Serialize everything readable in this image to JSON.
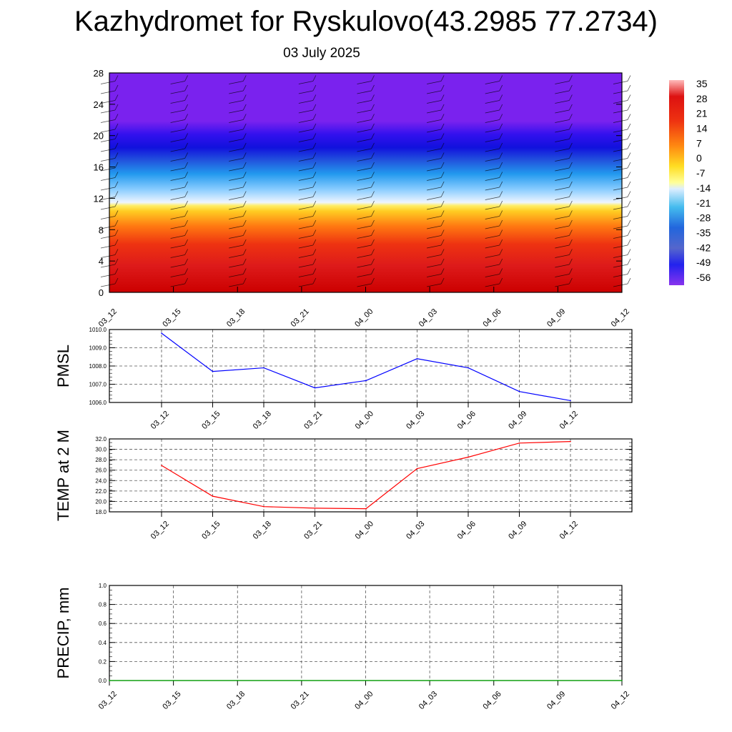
{
  "title": "Kazhydromet for Ryskulovo(43.2985 77.2734)",
  "subtitle": "03 July 2025",
  "chart_data": [
    {
      "type": "heatmap",
      "name": "vertical-temperature-cross-section",
      "x_tick_labels": [
        "03_12",
        "03_15",
        "03_18",
        "03_21",
        "04_00",
        "04_03",
        "04_06",
        "04_09",
        "04_12"
      ],
      "y_ticks": [
        0,
        4,
        8,
        12,
        16,
        20,
        24,
        28
      ],
      "ylim": [
        0,
        28
      ],
      "colorbar_labels": [
        "35",
        "28",
        "21",
        "14",
        "7",
        "0",
        "-7",
        "-14",
        "-21",
        "-28",
        "-35",
        "-42",
        "-49",
        "-56"
      ],
      "colors": {
        "warm": "#cc0000",
        "cold": "#7a22ee"
      }
    },
    {
      "type": "line",
      "ylabel": "PMSL",
      "categories": [
        "03_12",
        "03_15",
        "03_18",
        "03_21",
        "04_00",
        "04_03",
        "04_06",
        "04_09",
        "04_12"
      ],
      "values": [
        1009.8,
        1007.7,
        1007.9,
        1006.8,
        1007.2,
        1008.4,
        1007.9,
        1006.6,
        1006.1
      ],
      "ylim": [
        1006.0,
        1010.0
      ],
      "y_tick_labels": [
        "1010.0",
        "1009.0",
        "1008.0",
        "1007.0",
        "1006.0"
      ],
      "y_tick_values": [
        1010,
        1009,
        1008,
        1007,
        1006
      ],
      "color": "#0000ff"
    },
    {
      "type": "line",
      "ylabel": "TEMP at 2 M",
      "categories": [
        "03_12",
        "03_15",
        "03_18",
        "03_21",
        "04_00",
        "04_03",
        "04_06",
        "04_09",
        "04_12"
      ],
      "values": [
        26.9,
        21.0,
        19.0,
        18.7,
        18.6,
        26.3,
        28.5,
        31.2,
        31.5
      ],
      "ylim": [
        18.0,
        32.0
      ],
      "y_tick_labels": [
        "32.0",
        "30.0",
        "28.0",
        "26.0",
        "24.0",
        "22.0",
        "20.0",
        "18.0"
      ],
      "y_tick_values": [
        32,
        30,
        28,
        26,
        24,
        22,
        20,
        18
      ],
      "color": "#ff0000"
    },
    {
      "type": "line",
      "ylabel": "PRECIP, mm",
      "categories": [
        "03_12",
        "03_15",
        "03_18",
        "03_21",
        "04_00",
        "04_03",
        "04_06",
        "04_09",
        "04_12"
      ],
      "values": [
        0,
        0,
        0,
        0,
        0,
        0,
        0,
        0,
        0
      ],
      "ylim": [
        0.0,
        1.0
      ],
      "y_tick_labels": [
        "1.0",
        "0.8",
        "0.6",
        "0.4",
        "0.2",
        "0.0"
      ],
      "y_tick_values": [
        1.0,
        0.8,
        0.6,
        0.4,
        0.2,
        0.0
      ],
      "color": "#00aa00"
    }
  ]
}
